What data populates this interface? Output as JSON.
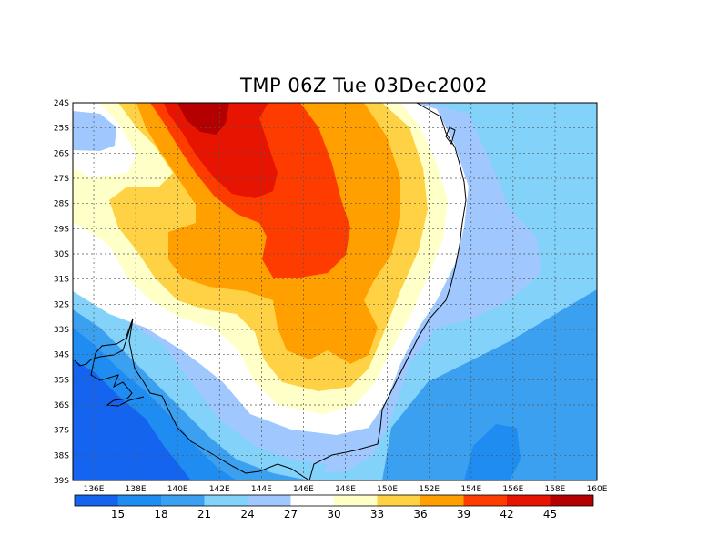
{
  "title": "TMP 06Z Tue 03Dec2002",
  "colors": {
    "c_lt15": "#1464f0",
    "c_15_18": "#1e8cf0",
    "c_18_21": "#3ca0f0",
    "c_21_24": "#82d2fa",
    "c_24_27": "#a0c8ff",
    "c_27_30": "#ffffff",
    "c_30_33": "#ffffc8",
    "c_33_36": "#ffd246",
    "c_36_39": "#ffa000",
    "c_39_42": "#ff3c00",
    "c_42_45": "#e61400",
    "c_gt45": "#b40000",
    "grid": "#555555",
    "coast": "#000000"
  },
  "axes": {
    "lat_labels": [
      "24S",
      "25S",
      "26S",
      "27S",
      "28S",
      "29S",
      "30S",
      "31S",
      "32S",
      "33S",
      "34S",
      "35S",
      "36S",
      "37S",
      "38S",
      "39S"
    ],
    "lon_labels": [
      "136E",
      "138E",
      "140E",
      "142E",
      "144E",
      "146E",
      "148E",
      "150E",
      "152E",
      "154E",
      "156E",
      "158E",
      "160E"
    ],
    "lat_range": [
      -39,
      -24
    ],
    "lon_range": [
      135,
      160
    ],
    "grid": true
  },
  "colorbar": {
    "labels": [
      "15",
      "18",
      "21",
      "24",
      "27",
      "30",
      "33",
      "36",
      "39",
      "42",
      "45"
    ]
  }
}
